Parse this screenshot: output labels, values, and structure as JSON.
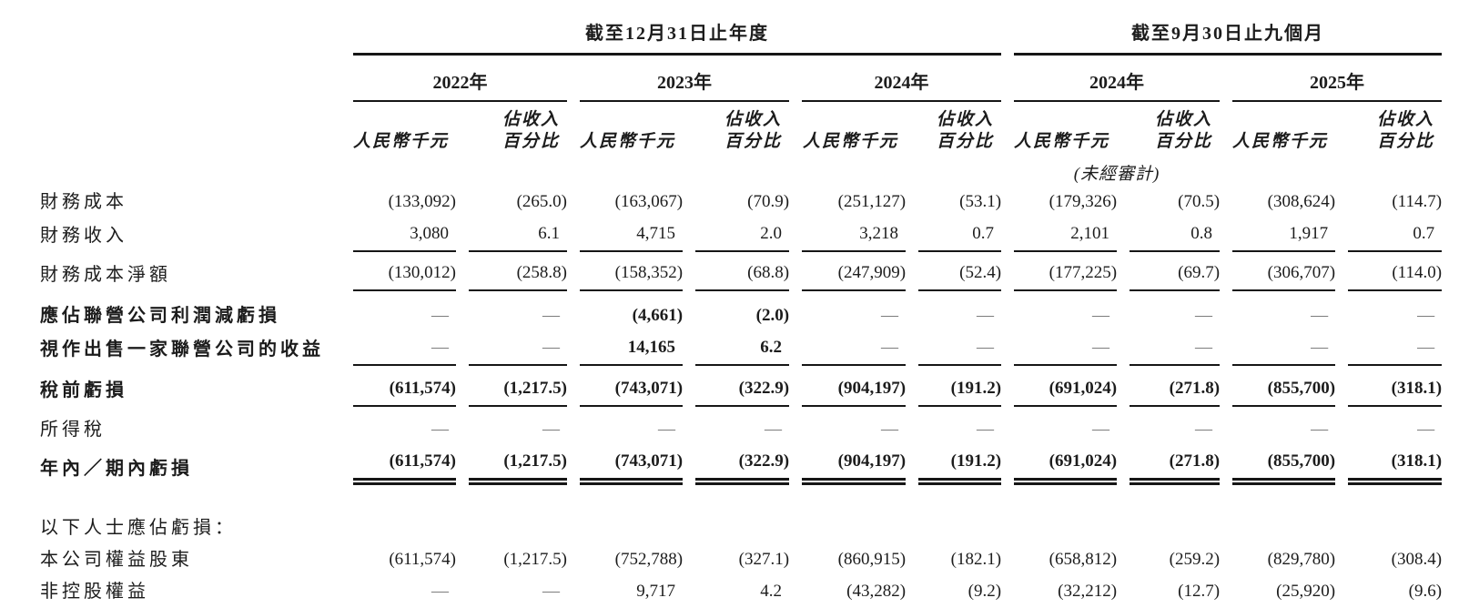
{
  "colors": {
    "text": "#1c1c1c",
    "rule_line": "#161616",
    "empty_dash": "#7d7d7d"
  },
  "header": {
    "group1_title": "截至12月31日止年度",
    "group2_title": "截至9月30日止九個月",
    "group1_years": [
      "2022年",
      "2023年",
      "2024年"
    ],
    "group2_years": [
      "2024年",
      "2025年"
    ],
    "amount_unit": "人民幣千元",
    "pct_line1": "佔收入",
    "pct_line2": "百分比",
    "unaudited": "(未經審計)"
  },
  "rows": [
    {
      "label": "財務成本",
      "bold": false,
      "rule": "none",
      "values": [
        "(133,092)",
        "(265.0)",
        "(163,067)",
        "(70.9)",
        "(251,127)",
        "(53.1)",
        "(179,326)",
        "(70.5)",
        "(308,624)",
        "(114.7)"
      ]
    },
    {
      "label": "財務收入",
      "bold": false,
      "rule": "single",
      "values": [
        "3,080",
        "6.1",
        "4,715",
        "2.0",
        "3,218",
        "0.7",
        "2,101",
        "0.8",
        "1,917",
        "0.7"
      ]
    },
    {
      "label": "財務成本淨額",
      "bold": false,
      "rule": "single",
      "spacer_before": 6,
      "values": [
        "(130,012)",
        "(258.8)",
        "(158,352)",
        "(68.8)",
        "(247,909)",
        "(52.4)",
        "(177,225)",
        "(69.7)",
        "(306,707)",
        "(114.0)"
      ]
    },
    {
      "label": "應佔聯營公司利潤減虧損",
      "bold": true,
      "rule": "none",
      "spacer_before": 10,
      "values": [
        "—",
        "—",
        "(4,661)",
        "(2.0)",
        "—",
        "—",
        "—",
        "—",
        "—",
        "—"
      ]
    },
    {
      "label": "視作出售一家聯營公司的收益",
      "bold": true,
      "rule": "single",
      "values": [
        "—",
        "—",
        "14,165",
        "6.2",
        "—",
        "—",
        "—",
        "—",
        "—",
        "—"
      ]
    },
    {
      "label": "稅前虧損",
      "bold": true,
      "rule": "single",
      "spacer_before": 8,
      "values": [
        "(611,574)",
        "(1,217.5)",
        "(743,071)",
        "(322.9)",
        "(904,197)",
        "(191.2)",
        "(691,024)",
        "(271.8)",
        "(855,700)",
        "(318.1)"
      ]
    },
    {
      "label": "所得稅",
      "bold": false,
      "rule": "none",
      "spacer_before": 8,
      "values": [
        "—",
        "—",
        "—",
        "—",
        "—",
        "—",
        "—",
        "—",
        "—",
        "—"
      ]
    },
    {
      "label": "年內／期內虧損",
      "bold": true,
      "rule": "double",
      "values": [
        "(611,574)",
        "(1,217.5)",
        "(743,071)",
        "(322.9)",
        "(904,197)",
        "(191.2)",
        "(691,024)",
        "(271.8)",
        "(855,700)",
        "(318.1)"
      ]
    },
    {
      "label": "以下人士應佔虧損：",
      "bold": false,
      "rule": "none",
      "spacer_before": 30,
      "values": null
    },
    {
      "label": "本公司權益股東",
      "bold": false,
      "rule": "none",
      "values": [
        "(611,574)",
        "(1,217.5)",
        "(752,788)",
        "(327.1)",
        "(860,915)",
        "(182.1)",
        "(658,812)",
        "(259.2)",
        "(829,780)",
        "(308.4)"
      ]
    },
    {
      "label": "非控股權益",
      "bold": false,
      "rule": "none",
      "values": [
        "—",
        "—",
        "9,717",
        "4.2",
        "(43,282)",
        "(9.2)",
        "(32,212)",
        "(12.7)",
        "(25,920)",
        "(9.6)"
      ]
    }
  ]
}
